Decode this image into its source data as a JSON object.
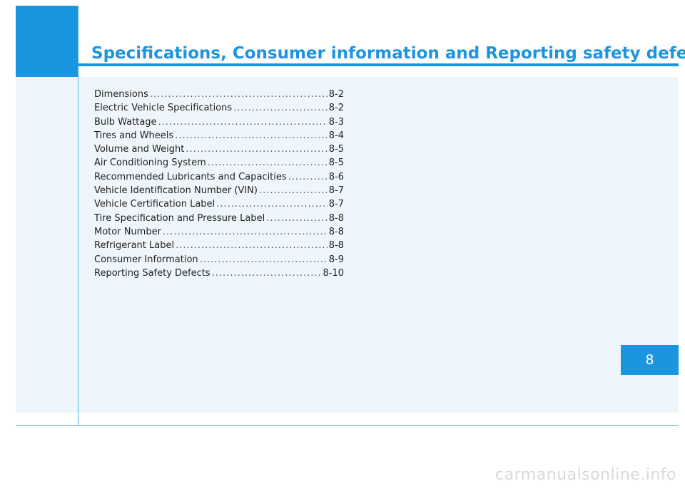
{
  "header": {
    "title": "Specifications, Consumer information and Reporting safety defects"
  },
  "toc": [
    {
      "label": "Dimensions",
      "page": "8-2"
    },
    {
      "label": "Electric Vehicle Specifications",
      "page": "8-2"
    },
    {
      "label": "Bulb Wattage",
      "page": "8-3"
    },
    {
      "label": "Tires and Wheels",
      "page": "8-4"
    },
    {
      "label": "Volume and Weight",
      "page": "8-5"
    },
    {
      "label": "Air Conditioning System",
      "page": "8-5"
    },
    {
      "label": "Recommended Lubricants and Capacities",
      "page": "8-6"
    },
    {
      "label": "Vehicle Identification Number (VIN)",
      "page": "8-7"
    },
    {
      "label": "Vehicle Certification Label",
      "page": "8-7"
    },
    {
      "label": "Tire Specification and Pressure Label",
      "page": "8-8"
    },
    {
      "label": "Motor Number",
      "page": "8-8"
    },
    {
      "label": "Refrigerant Label",
      "page": "8-8"
    },
    {
      "label": "Consumer Information",
      "page": "8-9"
    },
    {
      "label": "Reporting Safety Defects",
      "page": "8-10"
    }
  ],
  "chapter_tab": {
    "number": "8"
  },
  "watermark": {
    "text": "carmanualsonline.info"
  },
  "colors": {
    "accent": "#1a95e0",
    "panel": "#eef6fb"
  }
}
